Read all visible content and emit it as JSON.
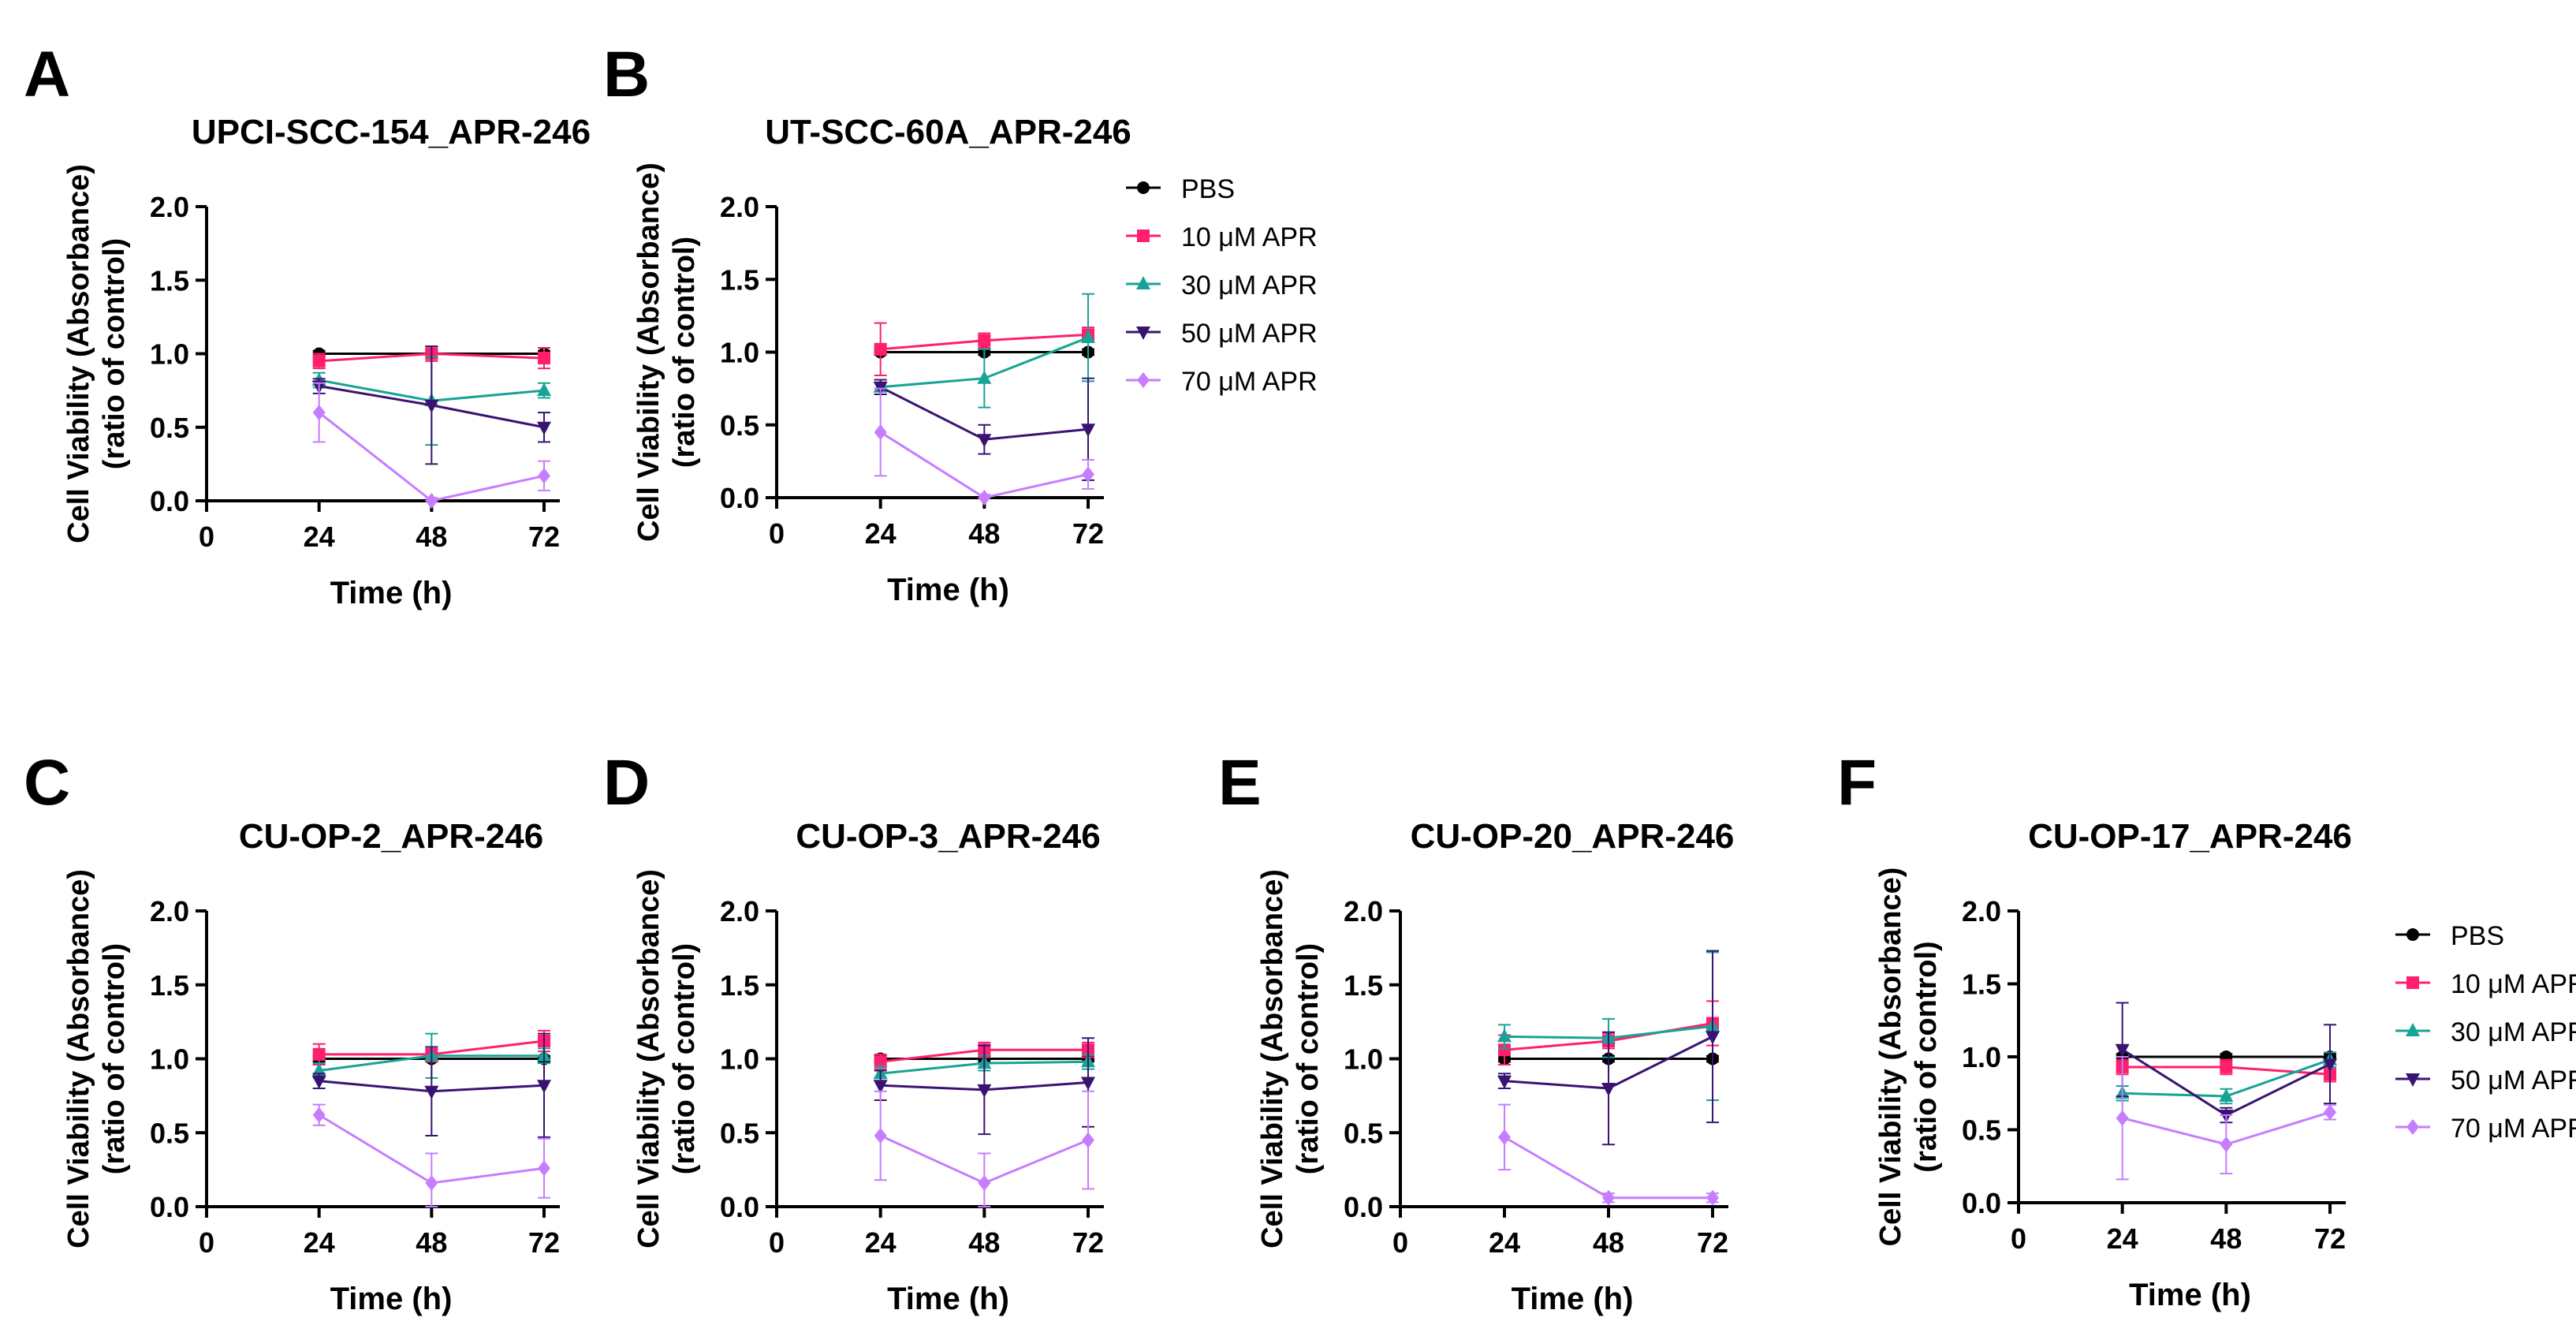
{
  "figure": {
    "legend": {
      "entries": [
        {
          "name": "PBS",
          "color": "#000000",
          "marker": "circle"
        },
        {
          "name": "10 μM APR",
          "color": "#ff1f6e",
          "marker": "square"
        },
        {
          "name": "30 μM APR",
          "color": "#17a396",
          "marker": "triangle-up"
        },
        {
          "name": "50 μM APR",
          "color": "#3a1372",
          "marker": "triangle-down"
        },
        {
          "name": "70 μM APR",
          "color": "#c77dff",
          "marker": "diamond"
        }
      ]
    }
  },
  "chart_data": [
    {
      "panel": "A",
      "type": "line",
      "title": "UPCI-SCC-154_APR-246",
      "xlabel": "Time (h)",
      "ylabel_line1": "Cell Viability (Absorbance)",
      "ylabel_line2": "(ratio of control)",
      "xlim": [
        0,
        72
      ],
      "ylim": [
        0,
        2.0
      ],
      "x_ticks": [
        "0",
        "24",
        "48",
        "72"
      ],
      "y_ticks": [
        "0.0",
        "0.5",
        "1.0",
        "1.5",
        "2.0"
      ],
      "x": [
        24,
        48,
        72
      ],
      "series": [
        {
          "name": "PBS",
          "values": [
            1.0,
            1.0,
            1.0
          ],
          "errors": [
            0.02,
            0.02,
            0.02
          ]
        },
        {
          "name": "10 μM APR",
          "values": [
            0.95,
            1.0,
            0.97
          ],
          "errors": [
            0.05,
            0.05,
            0.07
          ]
        },
        {
          "name": "30 μM APR",
          "values": [
            0.82,
            0.68,
            0.75
          ],
          "errors": [
            0.05,
            0.3,
            0.05
          ]
        },
        {
          "name": "50 μM APR",
          "values": [
            0.78,
            0.65,
            0.5
          ],
          "errors": [
            0.05,
            0.4,
            0.1
          ]
        },
        {
          "name": "70 μM APR",
          "values": [
            0.6,
            0.0,
            0.17
          ],
          "errors": [
            0.2,
            0.02,
            0.1
          ]
        }
      ]
    },
    {
      "panel": "B",
      "type": "line",
      "title": "UT-SCC-60A_APR-246",
      "xlabel": "Time (h)",
      "ylabel_line1": "Cell Viability (Absorbance)",
      "ylabel_line2": "(ratio of control)",
      "xlim": [
        0,
        72
      ],
      "ylim": [
        0,
        2.0
      ],
      "x_ticks": [
        "0",
        "24",
        "48",
        "72"
      ],
      "y_ticks": [
        "0.0",
        "0.5",
        "1.0",
        "1.5",
        "2.0"
      ],
      "x": [
        24,
        48,
        72
      ],
      "series": [
        {
          "name": "PBS",
          "values": [
            1.0,
            1.0,
            1.0
          ],
          "errors": [
            0.02,
            0.02,
            0.02
          ]
        },
        {
          "name": "10 μM APR",
          "values": [
            1.02,
            1.08,
            1.12
          ],
          "errors": [
            0.18,
            0.05,
            0.05
          ]
        },
        {
          "name": "30 μM APR",
          "values": [
            0.76,
            0.82,
            1.1
          ],
          "errors": [
            0.05,
            0.2,
            0.3
          ]
        },
        {
          "name": "50 μM APR",
          "values": [
            0.76,
            0.4,
            0.47
          ],
          "errors": [
            0.05,
            0.1,
            0.35
          ]
        },
        {
          "name": "70 μM APR",
          "values": [
            0.45,
            0.0,
            0.16
          ],
          "errors": [
            0.3,
            0.02,
            0.1
          ]
        }
      ]
    },
    {
      "panel": "C",
      "type": "line",
      "title": "CU-OP-2_APR-246",
      "xlabel": "Time (h)",
      "ylabel_line1": "Cell Viability (Absorbance)",
      "ylabel_line2": "(ratio of control)",
      "xlim": [
        0,
        72
      ],
      "ylim": [
        0,
        2.0
      ],
      "x_ticks": [
        "0",
        "24",
        "48",
        "72"
      ],
      "y_ticks": [
        "0.0",
        "0.5",
        "1.0",
        "1.5",
        "2.0"
      ],
      "x": [
        24,
        48,
        72
      ],
      "series": [
        {
          "name": "PBS",
          "values": [
            1.0,
            1.0,
            1.0
          ],
          "errors": [
            0.02,
            0.02,
            0.02
          ]
        },
        {
          "name": "10 μM APR",
          "values": [
            1.03,
            1.03,
            1.12
          ],
          "errors": [
            0.07,
            0.05,
            0.07
          ]
        },
        {
          "name": "30 μM APR",
          "values": [
            0.92,
            1.02,
            1.02
          ],
          "errors": [
            0.05,
            0.15,
            0.05
          ]
        },
        {
          "name": "50 μM APR",
          "values": [
            0.85,
            0.78,
            0.82
          ],
          "errors": [
            0.05,
            0.3,
            0.35
          ]
        },
        {
          "name": "70 μM APR",
          "values": [
            0.62,
            0.16,
            0.26
          ],
          "errors": [
            0.07,
            0.2,
            0.2
          ]
        }
      ]
    },
    {
      "panel": "D",
      "type": "line",
      "title": "CU-OP-3_APR-246",
      "xlabel": "Time (h)",
      "ylabel_line1": "Cell Viability (Absorbance)",
      "ylabel_line2": "(ratio of control)",
      "xlim": [
        0,
        72
      ],
      "ylim": [
        0,
        2.0
      ],
      "x_ticks": [
        "0",
        "24",
        "48",
        "72"
      ],
      "y_ticks": [
        "0.0",
        "0.5",
        "1.0",
        "1.5",
        "2.0"
      ],
      "x": [
        24,
        48,
        72
      ],
      "series": [
        {
          "name": "PBS",
          "values": [
            1.0,
            1.0,
            1.0
          ],
          "errors": [
            0.02,
            0.02,
            0.02
          ]
        },
        {
          "name": "10 μM APR",
          "values": [
            0.98,
            1.06,
            1.06
          ],
          "errors": [
            0.05,
            0.05,
            0.05
          ]
        },
        {
          "name": "30 μM APR",
          "values": [
            0.9,
            0.97,
            0.98
          ],
          "errors": [
            0.05,
            0.05,
            0.05
          ]
        },
        {
          "name": "50 μM APR",
          "values": [
            0.82,
            0.79,
            0.84
          ],
          "errors": [
            0.1,
            0.3,
            0.3
          ]
        },
        {
          "name": "70 μM APR",
          "values": [
            0.48,
            0.16,
            0.45
          ],
          "errors": [
            0.3,
            0.2,
            0.33
          ]
        }
      ]
    },
    {
      "panel": "E",
      "type": "line",
      "title": "CU-OP-20_APR-246",
      "xlabel": "Time (h)",
      "ylabel_line1": "Cell Viability (Absorbance)",
      "ylabel_line2": "(ratio of control)",
      "xlim": [
        0,
        72
      ],
      "ylim": [
        0,
        2.0
      ],
      "x_ticks": [
        "0",
        "24",
        "48",
        "72"
      ],
      "y_ticks": [
        "0.0",
        "0.5",
        "1.0",
        "1.5",
        "2.0"
      ],
      "x": [
        24,
        48,
        72
      ],
      "series": [
        {
          "name": "PBS",
          "values": [
            1.0,
            1.0,
            1.0
          ],
          "errors": [
            0.02,
            0.02,
            0.02
          ]
        },
        {
          "name": "10 μM APR",
          "values": [
            1.06,
            1.12,
            1.24
          ],
          "errors": [
            0.1,
            0.05,
            0.15
          ]
        },
        {
          "name": "30 μM APR",
          "values": [
            1.15,
            1.14,
            1.22
          ],
          "errors": [
            0.08,
            0.13,
            0.5
          ]
        },
        {
          "name": "50 μM APR",
          "values": [
            0.85,
            0.8,
            1.15
          ],
          "errors": [
            0.05,
            0.38,
            0.58
          ]
        },
        {
          "name": "70 μM APR",
          "values": [
            0.47,
            0.06,
            0.06
          ],
          "errors": [
            0.22,
            0.03,
            0.03
          ]
        }
      ]
    },
    {
      "panel": "F",
      "type": "line",
      "title": "CU-OP-17_APR-246",
      "xlabel": "Time (h)",
      "ylabel_line1": "Cell Viability (Absorbance)",
      "ylabel_line2": "(ratio of control)",
      "xlim": [
        0,
        72
      ],
      "ylim": [
        0,
        2.0
      ],
      "x_ticks": [
        "0",
        "24",
        "48",
        "72"
      ],
      "y_ticks": [
        "0.0",
        "0.5",
        "1.0",
        "1.5",
        "2.0"
      ],
      "x": [
        24,
        48,
        72
      ],
      "series": [
        {
          "name": "PBS",
          "values": [
            1.0,
            1.0,
            1.0
          ],
          "errors": [
            0.02,
            0.02,
            0.02
          ]
        },
        {
          "name": "10 μM APR",
          "values": [
            0.93,
            0.93,
            0.88
          ],
          "errors": [
            0.05,
            0.05,
            0.05
          ]
        },
        {
          "name": "30 μM APR",
          "values": [
            0.75,
            0.73,
            0.98
          ],
          "errors": [
            0.05,
            0.05,
            0.05
          ]
        },
        {
          "name": "50 μM APR",
          "values": [
            1.05,
            0.6,
            0.95
          ],
          "errors": [
            0.32,
            0.05,
            0.27
          ]
        },
        {
          "name": "70 μM APR",
          "values": [
            0.58,
            0.4,
            0.62
          ],
          "errors": [
            0.42,
            0.2,
            0.05
          ]
        }
      ]
    }
  ]
}
